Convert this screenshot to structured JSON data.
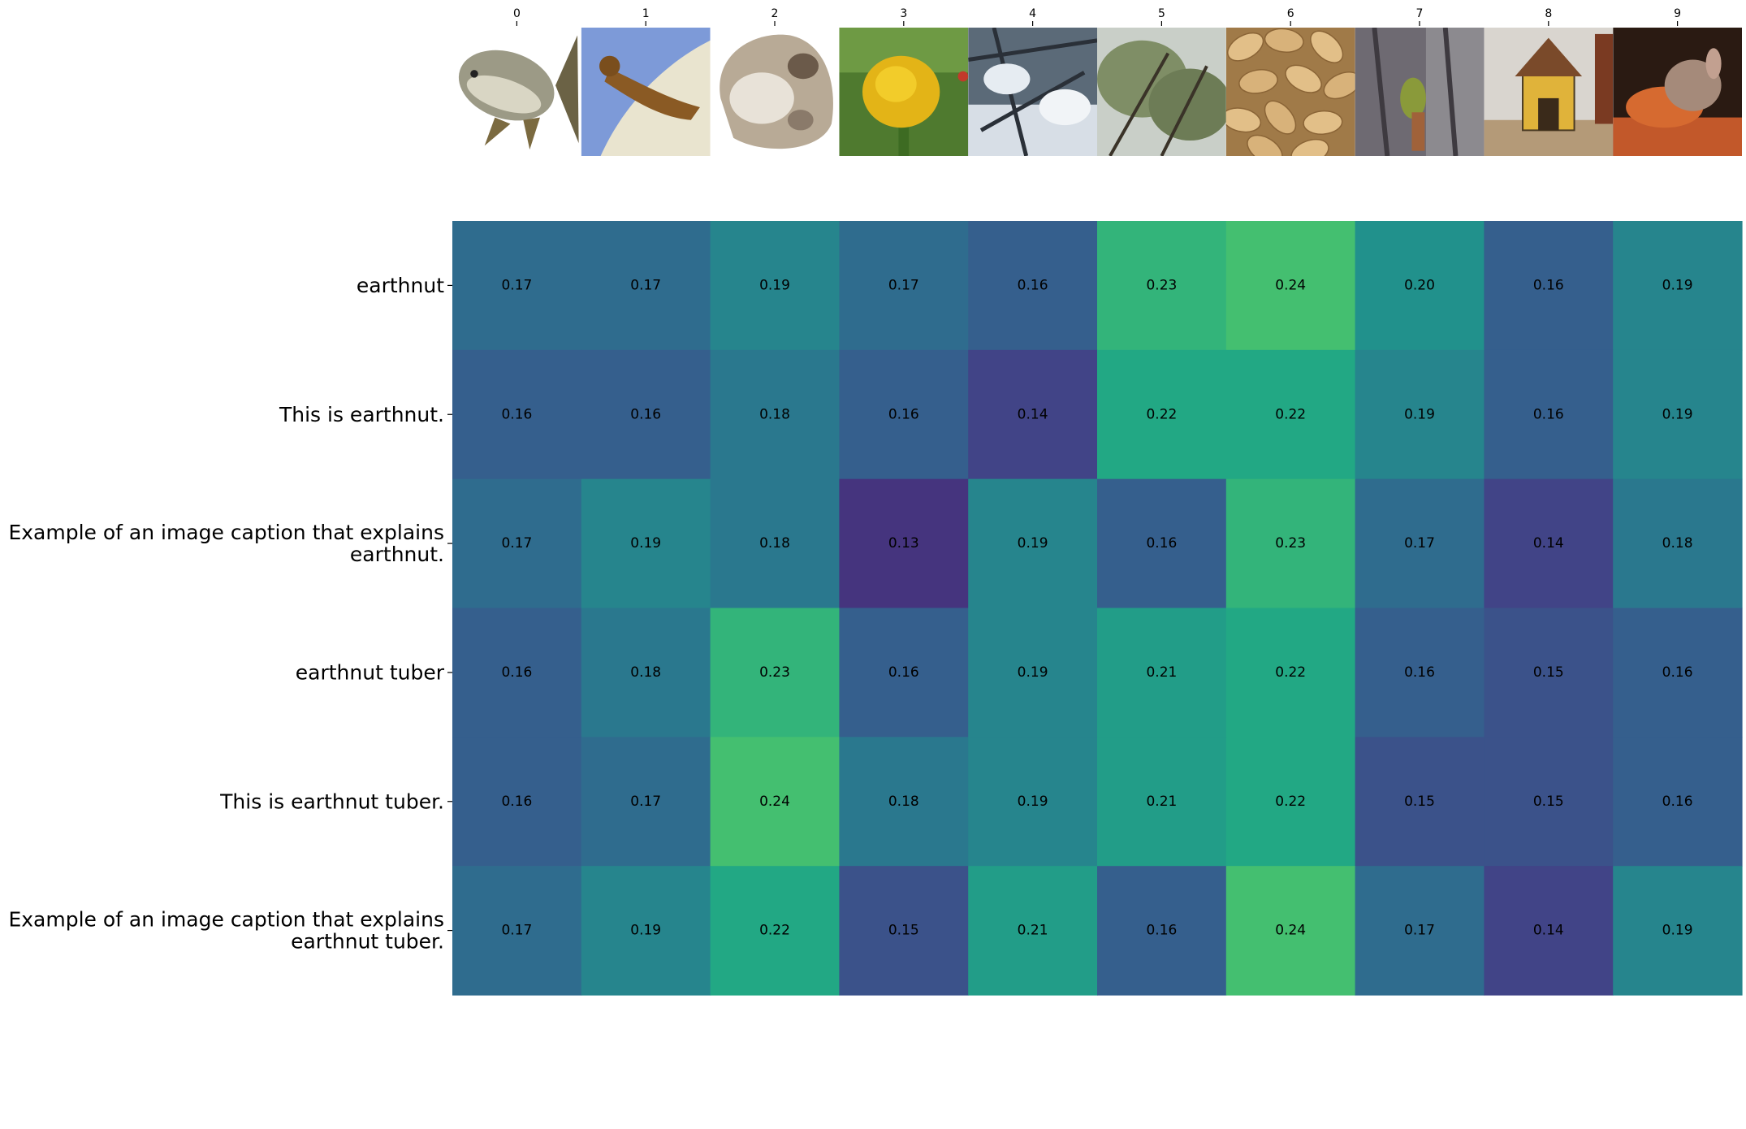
{
  "chart_data": {
    "type": "heatmap",
    "title": "",
    "xlabel": "",
    "ylabel": "",
    "x_tick_labels": [
      "0",
      "1",
      "2",
      "3",
      "4",
      "5",
      "6",
      "7",
      "8",
      "9"
    ],
    "x_images": [
      {
        "index": "0",
        "subject": "fish-illustration"
      },
      {
        "index": "1",
        "subject": "sea-lion-illustration"
      },
      {
        "index": "2",
        "subject": "rock"
      },
      {
        "index": "3",
        "subject": "yellow-flower"
      },
      {
        "index": "4",
        "subject": "frosty-branches"
      },
      {
        "index": "5",
        "subject": "tree-foliage"
      },
      {
        "index": "6",
        "subject": "peanuts"
      },
      {
        "index": "7",
        "subject": "bird-on-tree"
      },
      {
        "index": "8",
        "subject": "doghouse"
      },
      {
        "index": "9",
        "subject": "small-animal-eating"
      }
    ],
    "y_tick_labels": [
      [
        "earthnut"
      ],
      [
        "This is earthnut."
      ],
      [
        "Example of an image caption that explains",
        "earthnut."
      ],
      [
        "earthnut tuber"
      ],
      [
        "This is earthnut tuber."
      ],
      [
        "Example of an image caption that explains",
        "earthnut tuber."
      ]
    ],
    "values": [
      [
        0.17,
        0.17,
        0.19,
        0.17,
        0.16,
        0.23,
        0.24,
        0.2,
        0.16,
        0.19
      ],
      [
        0.16,
        0.16,
        0.18,
        0.16,
        0.14,
        0.22,
        0.22,
        0.19,
        0.16,
        0.19
      ],
      [
        0.17,
        0.19,
        0.18,
        0.13,
        0.19,
        0.16,
        0.23,
        0.17,
        0.14,
        0.18
      ],
      [
        0.16,
        0.18,
        0.23,
        0.16,
        0.19,
        0.21,
        0.22,
        0.16,
        0.15,
        0.16
      ],
      [
        0.16,
        0.17,
        0.24,
        0.18,
        0.19,
        0.21,
        0.22,
        0.15,
        0.15,
        0.16
      ],
      [
        0.17,
        0.19,
        0.22,
        0.15,
        0.21,
        0.16,
        0.24,
        0.17,
        0.14,
        0.19
      ]
    ],
    "value_format": "2-decimal",
    "colormap": "viridis",
    "color_range": [
      0.1,
      0.3
    ],
    "colorbar": false,
    "grid": false
  }
}
